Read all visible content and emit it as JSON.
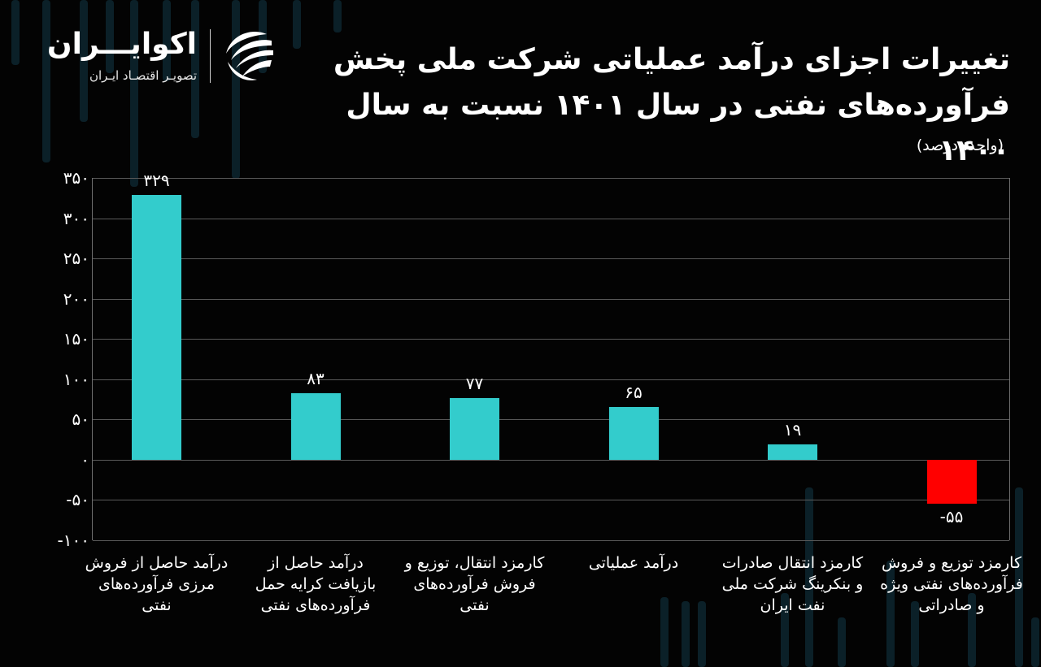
{
  "brand": {
    "name": "اکوایـــران",
    "tagline": "تصویـر اقتصـاد ایـران"
  },
  "title_line1": "تغییرات اجزای درآمد عملیاتی شرکت ملی پخش",
  "title_line2": "فرآورده‌های نفتی در سال ۱۴۰۱ نسبت به سال ۱۴۰۰",
  "unit": "(واحد: درصد)",
  "colors": {
    "positive": "#33cccc",
    "negative": "#ff0000",
    "background": "#030303",
    "grid": "#5a5a5a",
    "decor": "#0b2028"
  },
  "yticks": [
    "۳۵۰",
    "۳۰۰",
    "۲۵۰",
    "۲۰۰",
    "۱۵۰",
    "۱۰۰",
    "۵۰",
    "۰",
    "-۵۰",
    "-۱۰۰"
  ],
  "bars": [
    {
      "label": "درآمد حاصل از فروش مرزی فرآورده‌های نفتی",
      "value_text": "۳۲۹"
    },
    {
      "label": "درآمد حاصل از بازیافت کرایه حمل فرآورده‌های نفتی",
      "value_text": "۸۳"
    },
    {
      "label": "کارمزد انتقال، توزیع و فروش فرآورده‌های نفتی",
      "value_text": "۷۷"
    },
    {
      "label": "درآمد عملیاتی",
      "value_text": "۶۵"
    },
    {
      "label": "کارمزد انتقال صادرات و بنکرینگ شرکت ملی نفت ایران",
      "value_text": "۱۹"
    },
    {
      "label": "کارمزد توزیع و فروش فرآورده‌های نفتی ویژه و صادراتی",
      "value_text": "-۵۵"
    }
  ],
  "chart_data": {
    "type": "bar",
    "title": "تغییرات اجزای درآمد عملیاتی شرکت ملی پخش فرآورده‌های نفتی در سال ۱۴۰۱ نسبت به سال ۱۴۰۰",
    "subtitle": "(واحد: درصد)",
    "categories": [
      "درآمد حاصل از فروش مرزی فرآورده‌های نفتی",
      "درآمد حاصل از بازیافت کرایه حمل فرآورده‌های نفتی",
      "کارمزد انتقال، توزیع و فروش فرآورده‌های نفتی",
      "درآمد عملیاتی",
      "کارمزد انتقال صادرات و بنکرینگ شرکت ملی نفت ایران",
      "کارمزد توزیع و فروش فرآورده‌های نفتی ویژه و صادراتی"
    ],
    "values": [
      329,
      83,
      77,
      65,
      19,
      -55
    ],
    "xlabel": "",
    "ylabel": "درصد",
    "ylim": [
      -100,
      350
    ],
    "yticks": [
      350,
      300,
      250,
      200,
      150,
      100,
      50,
      0,
      -50,
      -100
    ],
    "grid": true,
    "legend": null,
    "data_labels": true
  }
}
